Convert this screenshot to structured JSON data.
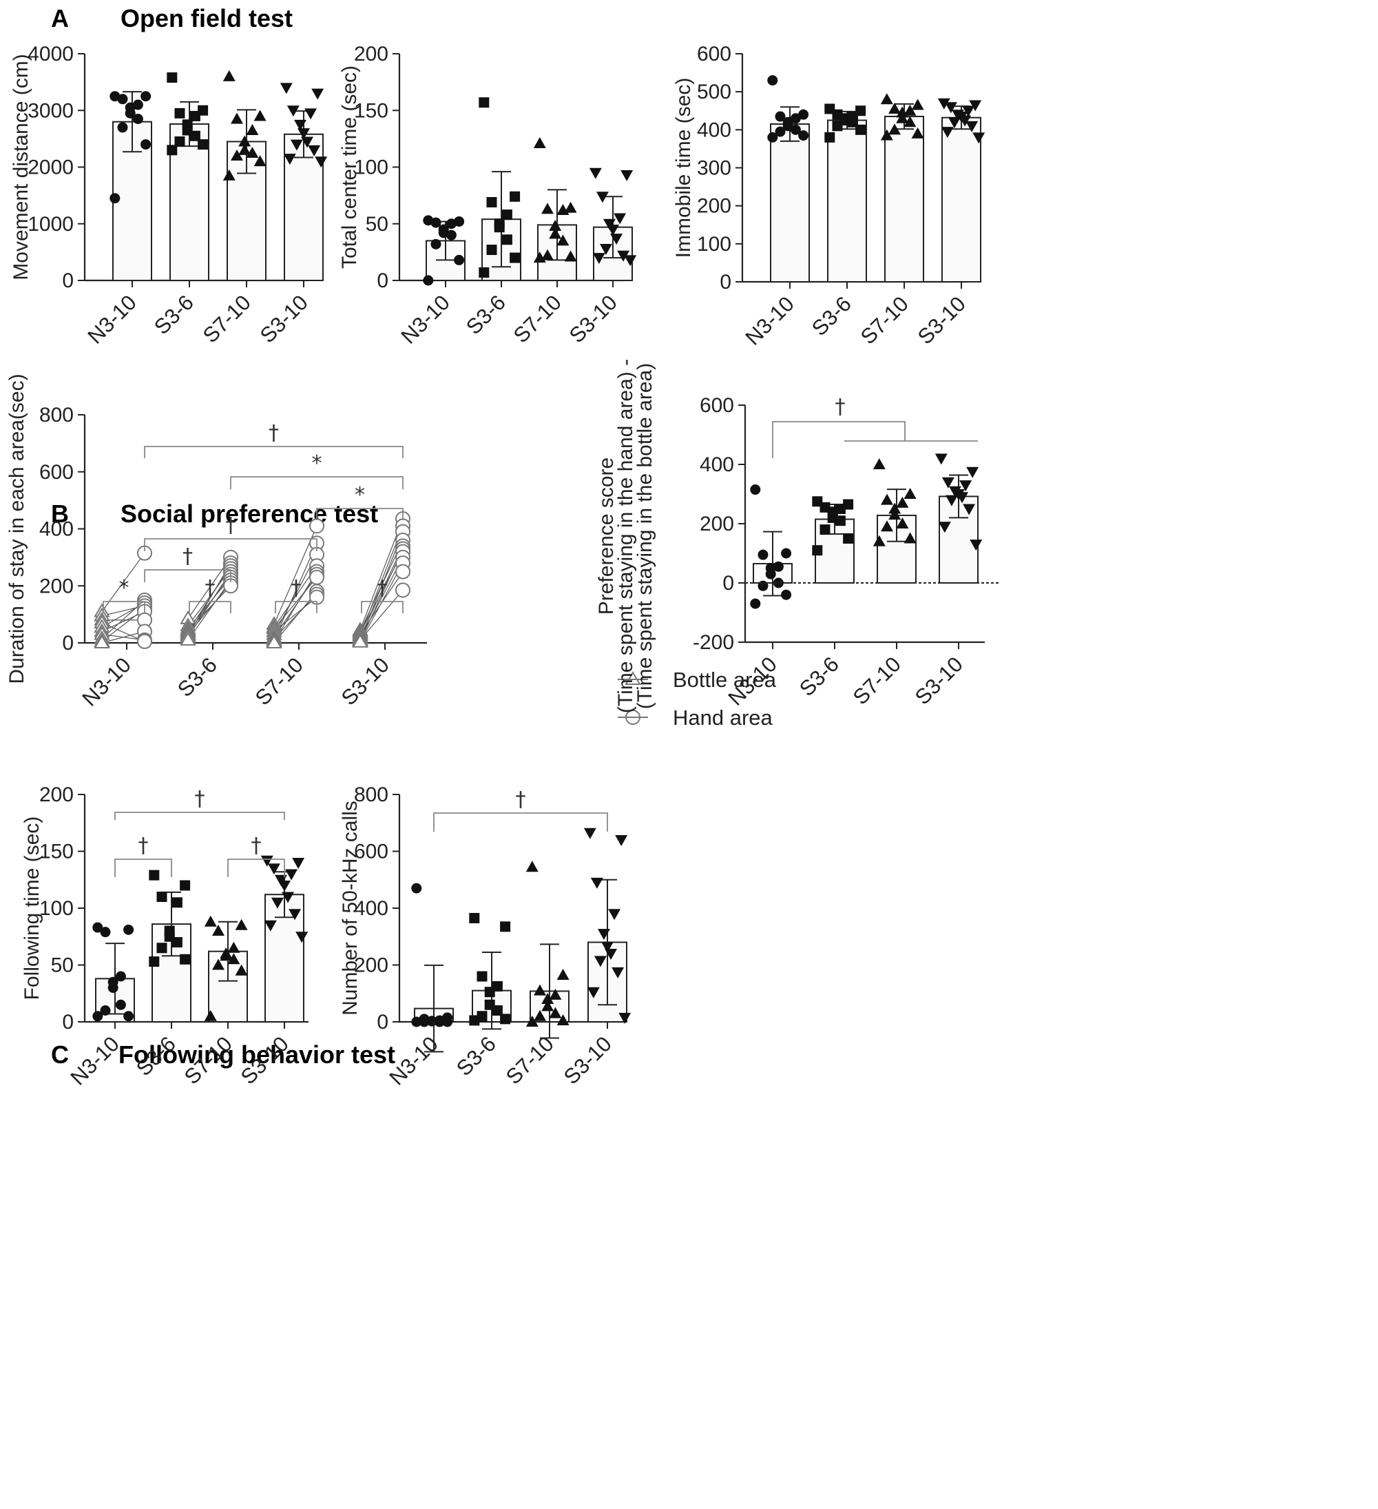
{
  "sections": {
    "A": {
      "letter": "A",
      "title": "Open field test"
    },
    "B": {
      "letter": "B",
      "title": "Social preference test"
    },
    "C": {
      "letter": "C",
      "title": "Following behavior test"
    }
  },
  "legend": {
    "bottle": "Bottle area",
    "hand": "Hand area"
  },
  "colors": {
    "axis": "#222222",
    "bar_fill": "#fafafa",
    "marker": "#111111",
    "open_marker": "#777777",
    "bracket": "#888888"
  },
  "chart_data": [
    {
      "id": "movement",
      "type": "bar",
      "title": "Open field test",
      "ylabel": "Movement distance (cm)",
      "ylim": [
        0,
        4000
      ],
      "yticks": [
        0,
        1000,
        2000,
        3000,
        4000
      ],
      "ytick_labels": [
        "0",
        "1000",
        "2000",
        "3000",
        "4000"
      ],
      "categories": [
        "N3-10",
        "S3-6",
        "S7-10",
        "S3-10"
      ],
      "means": [
        2800,
        2760,
        2450,
        2580
      ],
      "sd": [
        530,
        390,
        560,
        410
      ],
      "points": [
        [
          3250,
          3250,
          3200,
          3100,
          3050,
          2950,
          2850,
          2700,
          2400,
          1450
        ],
        [
          3580,
          3000,
          2950,
          2900,
          2750,
          2650,
          2550,
          2450,
          2400,
          2300
        ],
        [
          3600,
          2900,
          2850,
          2650,
          2450,
          2300,
          2250,
          2200,
          2100,
          1850
        ],
        [
          3400,
          3300,
          3000,
          2950,
          2750,
          2600,
          2450,
          2400,
          2300,
          2150,
          2100
        ]
      ],
      "markers": [
        "circle",
        "square",
        "triangle-up",
        "triangle-down"
      ],
      "brackets": []
    },
    {
      "id": "center",
      "type": "bar",
      "ylabel": "Total center time (sec)",
      "ylim": [
        0,
        200
      ],
      "yticks": [
        0,
        50,
        100,
        150,
        200
      ],
      "ytick_labels": [
        "0",
        "50",
        "100",
        "150",
        "200"
      ],
      "categories": [
        "N3-10",
        "S3-6",
        "S7-10",
        "S3-10"
      ],
      "means": [
        35,
        54,
        49,
        47
      ],
      "sd": [
        17,
        42,
        31,
        27
      ],
      "points": [
        [
          53,
          52,
          51,
          50,
          45,
          42,
          40,
          32,
          18,
          0
        ],
        [
          157,
          74,
          69,
          58,
          50,
          47,
          36,
          27,
          20,
          7
        ],
        [
          121,
          64,
          63,
          62,
          48,
          41,
          35,
          22,
          21,
          20
        ],
        [
          95,
          93,
          74,
          55,
          50,
          45,
          37,
          28,
          22,
          20,
          18
        ]
      ],
      "markers": [
        "circle",
        "square",
        "triangle-up",
        "triangle-down"
      ],
      "brackets": []
    },
    {
      "id": "immobile",
      "type": "bar",
      "ylabel": "Immobile time (sec)",
      "ylim": [
        0,
        600
      ],
      "yticks": [
        0,
        100,
        200,
        300,
        400,
        500,
        600
      ],
      "ytick_labels": [
        "0",
        "100",
        "200",
        "300",
        "400",
        "500",
        "600"
      ],
      "categories": [
        "N3-10",
        "S3-6",
        "S7-10",
        "S3-10"
      ],
      "means": [
        415,
        425,
        435,
        432
      ],
      "sd": [
        45,
        23,
        33,
        30
      ],
      "points": [
        [
          530,
          440,
          435,
          430,
          420,
          410,
          400,
          395,
          385,
          380
        ],
        [
          455,
          450,
          440,
          435,
          430,
          425,
          420,
          410,
          400,
          380
        ],
        [
          480,
          465,
          455,
          450,
          445,
          430,
          420,
          400,
          390,
          385
        ],
        [
          470,
          465,
          460,
          450,
          440,
          435,
          425,
          420,
          410,
          395,
          380
        ]
      ],
      "markers": [
        "circle",
        "square",
        "triangle-up",
        "triangle-down"
      ],
      "brackets": []
    },
    {
      "id": "duration",
      "type": "paired-line",
      "ylabel": "Duration of stay in each area(sec)",
      "ylim": [
        0,
        800
      ],
      "yticks": [
        0,
        200,
        400,
        600,
        800
      ],
      "ytick_labels": [
        "0",
        "200",
        "400",
        "600",
        "800"
      ],
      "categories": [
        "N3-10",
        "S3-6",
        "S7-10",
        "S3-10"
      ],
      "series": [
        {
          "name": "Bottle area",
          "marker": "open-triangle",
          "values": [
            [
              110,
              95,
              80,
              70,
              55,
              40,
              30,
              15,
              5,
              0
            ],
            [
              85,
              60,
              50,
              45,
              40,
              35,
              30,
              25,
              20,
              10
            ],
            [
              65,
              55,
              50,
              40,
              30,
              20,
              15,
              10,
              5,
              0
            ],
            [
              45,
              40,
              35,
              30,
              25,
              20,
              15,
              10,
              8,
              5,
              3
            ]
          ]
        },
        {
          "name": "Hand area",
          "marker": "open-circle",
          "values": [
            [
              315,
              150,
              140,
              130,
              120,
              110,
              80,
              40,
              10,
              5
            ],
            [
              300,
              280,
              270,
              260,
              250,
              240,
              230,
              220,
              210,
              200
            ],
            [
              410,
              350,
              310,
              270,
              250,
              240,
              230,
              180,
              170,
              160
            ],
            [
              435,
              410,
              390,
              360,
              340,
              330,
              320,
              300,
              280,
              250,
              185
            ]
          ]
        }
      ],
      "brackets": [
        {
          "from": "N3-10 Bottle area",
          "to": "N3-10 Hand area",
          "label": "*"
        },
        {
          "from": "S3-6 Bottle area",
          "to": "S3-6 Hand area",
          "label": "†"
        },
        {
          "from": "S7-10 Bottle area",
          "to": "S7-10 Hand area",
          "label": "†"
        },
        {
          "from": "S3-10 Bottle area",
          "to": "S3-10 Hand area",
          "label": "†"
        },
        {
          "from": "N3-10 Hand area",
          "to": "S3-6 Hand area",
          "label": "†"
        },
        {
          "from": "N3-10 Hand area",
          "to": "S7-10 Hand area",
          "label": "†"
        },
        {
          "from": "S7-10 Hand area",
          "to": "S3-10 Hand area",
          "label": "*"
        },
        {
          "from": "S3-6 Hand area",
          "to": "S3-10 Hand area",
          "label": "*"
        },
        {
          "from": "N3-10 Hand area",
          "to": "S3-10 Hand area",
          "label": "†"
        }
      ]
    },
    {
      "id": "preference",
      "type": "bar",
      "ylabel": "Preference  score",
      "ylabel2": "(Time spent staying in the hand area) -",
      "ylabel3": "(Time spent staying in the bottle area)",
      "ylim": [
        -200,
        600
      ],
      "yticks": [
        -200,
        0,
        200,
        400,
        600
      ],
      "ytick_labels": [
        "-200",
        "0",
        "200",
        "400",
        "600"
      ],
      "categories": [
        "N3-10",
        "S3-6",
        "S7-10",
        "S3-10"
      ],
      "means": [
        65,
        215,
        228,
        292
      ],
      "sd": [
        108,
        50,
        88,
        72
      ],
      "points": [
        [
          315,
          100,
          95,
          55,
          50,
          30,
          0,
          -10,
          -40,
          -70
        ],
        [
          275,
          265,
          255,
          250,
          240,
          220,
          210,
          180,
          150,
          110
        ],
        [
          400,
          300,
          280,
          270,
          250,
          230,
          200,
          190,
          150,
          140
        ],
        [
          420,
          375,
          340,
          330,
          310,
          300,
          290,
          280,
          250,
          190,
          130
        ]
      ],
      "markers": [
        "circle",
        "square",
        "triangle-up",
        "triangle-down"
      ],
      "brackets": [
        {
          "from": "N3-10",
          "to": "S3-6, S7-10, S3-10",
          "label": "†"
        }
      ]
    },
    {
      "id": "following",
      "type": "bar",
      "title": "Following behavior test",
      "ylabel": "Following time (sec)",
      "ylim": [
        0,
        200
      ],
      "yticks": [
        0,
        50,
        100,
        150,
        200
      ],
      "ytick_labels": [
        "0",
        "50",
        "100",
        "150",
        "200"
      ],
      "categories": [
        "N3-10",
        "S3-6",
        "S7-10",
        "S3-10"
      ],
      "means": [
        38,
        86,
        62,
        112
      ],
      "sd": [
        31,
        28,
        26,
        20
      ],
      "points": [
        [
          83,
          81,
          79,
          40,
          35,
          30,
          15,
          10,
          5,
          5
        ],
        [
          129,
          120,
          110,
          105,
          80,
          75,
          70,
          65,
          55,
          53
        ],
        [
          88,
          85,
          80,
          65,
          60,
          58,
          55,
          50,
          45,
          5
        ],
        [
          142,
          140,
          135,
          130,
          125,
          120,
          110,
          105,
          95,
          85,
          75
        ]
      ],
      "markers": [
        "circle",
        "square",
        "triangle-up",
        "triangle-down"
      ],
      "brackets": [
        {
          "from": "N3-10",
          "to": "S3-6",
          "label": "†"
        },
        {
          "from": "S7-10",
          "to": "S3-10",
          "label": "†"
        },
        {
          "from": "N3-10",
          "to": "S3-10",
          "label": "†"
        }
      ]
    },
    {
      "id": "calls",
      "type": "bar",
      "ylabel": "Number of 50-kHz calls",
      "ylim": [
        0,
        800
      ],
      "yticks": [
        0,
        200,
        400,
        600,
        800
      ],
      "ytick_labels": [
        "0",
        "200",
        "400",
        "600",
        "800"
      ],
      "categories": [
        "N3-10",
        "S3-6",
        "S7-10",
        "S3-10"
      ],
      "means": [
        47,
        110,
        108,
        280
      ],
      "sd": [
        152,
        135,
        165,
        220
      ],
      "points": [
        [
          470,
          15,
          10,
          5,
          3,
          2,
          0,
          0,
          0,
          0
        ],
        [
          365,
          335,
          160,
          125,
          105,
          60,
          40,
          20,
          10,
          5
        ],
        [
          545,
          165,
          110,
          95,
          80,
          55,
          30,
          20,
          5,
          0
        ],
        [
          665,
          640,
          490,
          380,
          310,
          265,
          240,
          215,
          175,
          105,
          15
        ]
      ],
      "markers": [
        "circle",
        "square",
        "triangle-up",
        "triangle-down"
      ],
      "brackets": [
        {
          "from": "N3-10",
          "to": "S3-10",
          "label": "†"
        }
      ]
    }
  ]
}
